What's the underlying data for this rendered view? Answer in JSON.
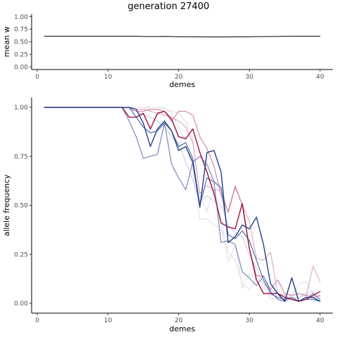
{
  "title": "generation 27400",
  "chart_data": [
    {
      "type": "line",
      "xlabel": "demes",
      "ylabel": "mean w",
      "xlim": [
        -0.8,
        41.8
      ],
      "ylim": [
        -0.05,
        1.05
      ],
      "xticks": [
        "0",
        "10",
        "20",
        "30",
        "40"
      ],
      "yticks": [
        "0.00",
        "0.25",
        "0.50",
        "0.75",
        "1.00"
      ],
      "grid": false,
      "x": [
        1,
        2,
        3,
        4,
        5,
        6,
        7,
        8,
        9,
        10,
        11,
        12,
        13,
        14,
        15,
        16,
        17,
        18,
        19,
        20,
        21,
        22,
        23,
        24,
        25,
        26,
        27,
        28,
        29,
        30,
        31,
        32,
        33,
        34,
        35,
        36,
        37,
        38,
        39,
        40
      ],
      "series": [
        {
          "color": "#000000",
          "values": [
            0.61,
            0.61,
            0.61,
            0.61,
            0.61,
            0.61,
            0.61,
            0.61,
            0.61,
            0.61,
            0.61,
            0.61,
            0.61,
            0.61,
            0.605,
            0.605,
            0.605,
            0.607,
            0.605,
            0.6,
            0.6,
            0.6,
            0.598,
            0.596,
            0.595,
            0.595,
            0.595,
            0.597,
            0.598,
            0.6,
            0.602,
            0.603,
            0.605,
            0.607,
            0.608,
            0.609,
            0.61,
            0.61,
            0.61,
            0.61
          ]
        }
      ]
    },
    {
      "type": "line",
      "xlabel": "demes",
      "ylabel": "allele frequency",
      "xlim": [
        -0.8,
        41.8
      ],
      "ylim": [
        -0.05,
        1.05
      ],
      "xticks": [
        "0",
        "10",
        "20",
        "30",
        "40"
      ],
      "yticks": [
        "0.00",
        "0.25",
        "0.50",
        "0.75",
        "1.00"
      ],
      "grid": false,
      "x": [
        1,
        2,
        3,
        4,
        5,
        6,
        7,
        8,
        9,
        10,
        11,
        12,
        13,
        14,
        15,
        16,
        17,
        18,
        19,
        20,
        21,
        22,
        23,
        24,
        25,
        26,
        27,
        28,
        29,
        30,
        31,
        32,
        33,
        34,
        35,
        36,
        37,
        38,
        39,
        40
      ],
      "series": [
        {
          "color": "#dcdcea",
          "width": 1,
          "values": [
            1,
            1,
            1,
            1,
            1,
            1,
            1,
            1,
            1,
            1,
            1,
            1,
            1,
            0.99,
            0.99,
            1,
            1,
            1,
            0.97,
            0.9,
            0.82,
            0.68,
            0.43,
            0.43,
            0.4,
            0.38,
            0.26,
            0.22,
            0.1,
            0.07,
            0.13,
            0.1,
            0.02,
            0.03,
            0.02,
            0.04,
            0.1,
            0.11,
            0.05,
            0.03
          ]
        },
        {
          "color": "#e4dce4",
          "width": 1,
          "values": [
            1,
            1,
            1,
            1,
            1,
            1,
            1,
            1,
            1,
            1,
            1,
            1,
            1,
            1,
            1,
            1,
            1,
            0.99,
            0.98,
            0.97,
            0.93,
            0.84,
            0.55,
            0.47,
            0.58,
            0.44,
            0.21,
            0.3,
            0.08,
            0.15,
            0.12,
            0.08,
            0.04,
            0.04,
            0.02,
            0.03,
            0.03,
            0.04,
            0.05,
            0.02
          ]
        },
        {
          "color": "#c8c8dc",
          "width": 1,
          "values": [
            1,
            1,
            1,
            1,
            1,
            1,
            1,
            1,
            1,
            1,
            1,
            1,
            0.99,
            0.98,
            0.96,
            0.95,
            0.93,
            0.9,
            0.85,
            0.82,
            0.72,
            0.63,
            0.52,
            0.55,
            0.52,
            0.5,
            0.4,
            0.36,
            0.34,
            0.25,
            0.18,
            0.1,
            0.07,
            0.05,
            0.04,
            0.02,
            0.03,
            0.05,
            0.06,
            0.01
          ]
        },
        {
          "color": "#d8a0b8",
          "width": 1,
          "values": [
            1,
            1,
            1,
            1,
            1,
            1,
            1,
            1,
            1,
            1,
            1,
            1,
            1,
            0.99,
            0.99,
            0.98,
            0.97,
            0.96,
            0.95,
            0.93,
            0.9,
            0.82,
            0.56,
            0.6,
            0.58,
            0.58,
            0.46,
            0.59,
            0.5,
            0.42,
            0.23,
            0.22,
            0.26,
            0.05,
            0.04,
            0.02,
            0.01,
            0.03,
            0.19,
            0.11
          ]
        },
        {
          "color": "#d488a8",
          "width": 1.2,
          "values": [
            1,
            1,
            1,
            1,
            1,
            1,
            1,
            1,
            1,
            1,
            1,
            1,
            1,
            0.98,
            0.98,
            0.99,
            0.99,
            0.98,
            0.93,
            0.98,
            0.98,
            0.96,
            0.85,
            0.79,
            0.7,
            0.55,
            0.47,
            0.6,
            0.5,
            0.28,
            0.14,
            0.14,
            0.07,
            0.12,
            0.05,
            0.04,
            0.05,
            0.04,
            0.03,
            0.04
          ]
        },
        {
          "color": "#7a88b8",
          "width": 1.2,
          "values": [
            1,
            1,
            1,
            1,
            1,
            1,
            1,
            1,
            1,
            1,
            1,
            1,
            0.93,
            0.85,
            0.74,
            0.75,
            0.76,
            0.92,
            0.71,
            0.64,
            0.58,
            0.72,
            0.75,
            0.71,
            0.62,
            0.31,
            0.32,
            0.3,
            0.16,
            0.13,
            0.09,
            0.14,
            0.06,
            0.02,
            0.01,
            0.03,
            0.01,
            0.02,
            0.05,
            0.02
          ]
        },
        {
          "color": "#5a6ea8",
          "width": 1.2,
          "values": [
            1,
            1,
            1,
            1,
            1,
            1,
            1,
            1,
            1,
            1,
            1,
            1,
            1,
            0.95,
            0.9,
            0.87,
            0.88,
            0.92,
            0.88,
            0.8,
            0.82,
            0.74,
            0.5,
            0.64,
            0.62,
            0.59,
            0.35,
            0.33,
            0.37,
            0.32,
            0.22,
            0.12,
            0.05,
            0.03,
            0.02,
            0.03,
            0.01,
            0.02,
            0.02,
            0.01
          ]
        },
        {
          "color": "#9e1040",
          "width": 1.4,
          "values": [
            1,
            1,
            1,
            1,
            1,
            1,
            1,
            1,
            1,
            1,
            1,
            1,
            0.95,
            0.95,
            0.97,
            0.89,
            0.97,
            0.98,
            0.94,
            0.85,
            0.84,
            0.89,
            0.77,
            0.67,
            0.56,
            0.41,
            0.39,
            0.38,
            0.51,
            0.28,
            0.12,
            0.05,
            0.05,
            0.05,
            0.03,
            0.02,
            0.01,
            0.02,
            0.04,
            0.06
          ]
        },
        {
          "color": "#1f3f8c",
          "width": 1.4,
          "values": [
            1,
            1,
            1,
            1,
            1,
            1,
            1,
            1,
            1,
            1,
            1,
            1,
            1,
            0.99,
            0.92,
            0.8,
            0.89,
            0.93,
            0.88,
            0.78,
            0.8,
            0.72,
            0.49,
            0.77,
            0.78,
            0.67,
            0.31,
            0.34,
            0.4,
            0.38,
            0.44,
            0.3,
            0.1,
            0.05,
            0.01,
            0.13,
            0.01,
            0.03,
            0.03,
            0.01
          ]
        }
      ]
    }
  ]
}
